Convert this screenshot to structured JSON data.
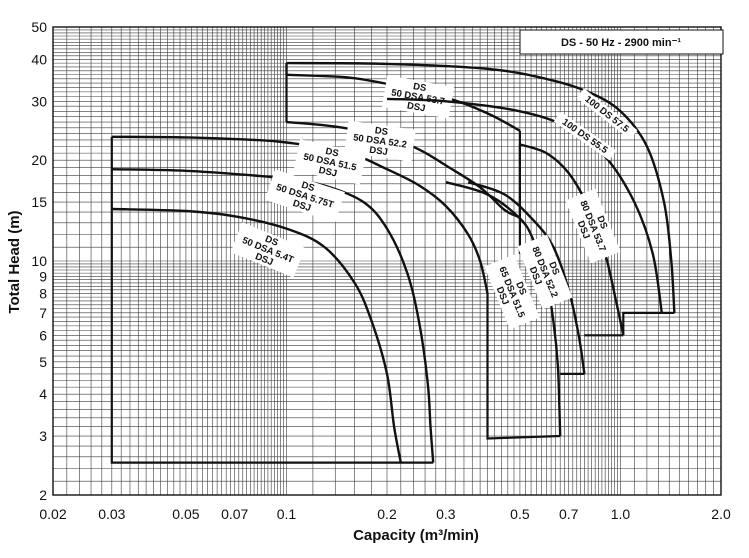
{
  "chart_data": {
    "type": "line",
    "title": "",
    "legend_text": "DS - 50 Hz - 2900 min⁻¹",
    "legend_position": "top-right",
    "xlabel": "Capacity (m³/min)",
    "ylabel": "Total Head (m)",
    "xscale": "log",
    "yscale": "log",
    "xlim": [
      0.02,
      2.0
    ],
    "ylim": [
      2,
      50
    ],
    "grid": true,
    "x_tick_labels": [
      "0.02",
      "0.03",
      "0.05",
      "0.07",
      "0.1",
      "0.2",
      "0.3",
      "0.5",
      "0.7",
      "1.0",
      "2.0"
    ],
    "x_tick_values": [
      0.02,
      0.03,
      0.05,
      0.07,
      0.1,
      0.2,
      0.3,
      0.5,
      0.7,
      1.0,
      2.0
    ],
    "y_tick_labels": [
      "2",
      "3",
      "4",
      "5",
      "6",
      "7",
      "8",
      "9",
      "10",
      "15",
      "20",
      "30",
      "40",
      "50"
    ],
    "y_tick_values": [
      2,
      3,
      4,
      5,
      6,
      7,
      8,
      9,
      10,
      15,
      20,
      30,
      40,
      50
    ],
    "series": [
      {
        "name": "50 DS 5.4T",
        "label_lines": [
          "DS",
          "50 DSA 5.4T",
          "DSJ"
        ],
        "points": [
          [
            0.03,
            14.3
          ],
          [
            0.05,
            14.1
          ],
          [
            0.07,
            13.6
          ],
          [
            0.1,
            12.5
          ],
          [
            0.13,
            11.0
          ],
          [
            0.16,
            8.6
          ],
          [
            0.18,
            6.6
          ],
          [
            0.2,
            4.6
          ],
          [
            0.21,
            3.2
          ],
          [
            0.22,
            2.5
          ]
        ]
      },
      {
        "name": "50 DS 5.75T",
        "label_lines": [
          "DS",
          "50 DSA 5.75T",
          "DSJ"
        ],
        "points": [
          [
            0.03,
            18.8
          ],
          [
            0.05,
            18.6
          ],
          [
            0.08,
            18.0
          ],
          [
            0.1,
            17.6
          ],
          [
            0.13,
            16.8
          ],
          [
            0.17,
            15.0
          ],
          [
            0.2,
            12.5
          ],
          [
            0.23,
            9.2
          ],
          [
            0.25,
            6.5
          ],
          [
            0.265,
            4.3
          ],
          [
            0.27,
            3.2
          ],
          [
            0.275,
            2.5
          ]
        ]
      },
      {
        "name": "50 DS 51.5",
        "label_lines": [
          "DS",
          "50 DSA 51.5",
          "DSJ"
        ],
        "points": [
          [
            0.03,
            23.5
          ],
          [
            0.05,
            23.4
          ],
          [
            0.08,
            23.0
          ],
          [
            0.1,
            22.6
          ],
          [
            0.15,
            21.2
          ],
          [
            0.2,
            18.8
          ],
          [
            0.25,
            16.8
          ],
          [
            0.3,
            14.6
          ],
          [
            0.35,
            12.0
          ],
          [
            0.38,
            10.0
          ],
          [
            0.4,
            8.0
          ]
        ]
      },
      {
        "name": "50 DS 52.2",
        "label_lines": [
          "DS",
          "50 DSA 52.2",
          "DSJ"
        ],
        "points": [
          [
            0.1,
            26.0
          ],
          [
            0.14,
            25.2
          ],
          [
            0.2,
            23.5
          ],
          [
            0.25,
            21.5
          ],
          [
            0.3,
            19.3
          ],
          [
            0.38,
            16.6
          ],
          [
            0.45,
            14.2
          ],
          [
            0.5,
            13.5
          ]
        ]
      },
      {
        "name": "50 DS 53.7",
        "label_lines": [
          "DS",
          "50 DSA 53.7",
          "DSJ"
        ],
        "points": [
          [
            0.1,
            36.0
          ],
          [
            0.15,
            35.4
          ],
          [
            0.2,
            33.8
          ],
          [
            0.3,
            30.8
          ],
          [
            0.4,
            27.6
          ],
          [
            0.5,
            24.5
          ]
        ]
      },
      {
        "name": "65 DS 51.5",
        "label_lines": [
          "DS",
          "65 DSA 51.5",
          "DSJ"
        ],
        "points": [
          [
            0.3,
            17.2
          ],
          [
            0.4,
            15.8
          ],
          [
            0.5,
            13.4
          ],
          [
            0.55,
            11.5
          ],
          [
            0.6,
            8.8
          ],
          [
            0.63,
            6.6
          ],
          [
            0.65,
            4.8
          ],
          [
            0.66,
            3.0
          ]
        ]
      },
      {
        "name": "80 DS 52.2",
        "label_lines": [
          "DS",
          "80 DSA 52.2",
          "DSJ"
        ],
        "points": [
          [
            0.35,
            17.2
          ],
          [
            0.45,
            15.8
          ],
          [
            0.55,
            13.2
          ],
          [
            0.63,
            11.0
          ],
          [
            0.7,
            8.2
          ],
          [
            0.75,
            6.0
          ],
          [
            0.78,
            4.6
          ]
        ]
      },
      {
        "name": "80 DS 53.7",
        "label_lines": [
          "DS",
          "80 DSA 53.7",
          "DSJ"
        ],
        "points": [
          [
            0.5,
            22.3
          ],
          [
            0.6,
            21.0
          ],
          [
            0.7,
            18.3
          ],
          [
            0.8,
            14.5
          ],
          [
            0.9,
            10.5
          ],
          [
            0.97,
            7.6
          ],
          [
            1.02,
            6.0
          ]
        ]
      },
      {
        "name": "100 DS 55.5",
        "label_lines": [
          "100 DS 55.5"
        ],
        "points": [
          [
            0.2,
            30.5
          ],
          [
            0.3,
            30.0
          ],
          [
            0.5,
            28.0
          ],
          [
            0.7,
            25.0
          ],
          [
            0.9,
            20.5
          ],
          [
            1.1,
            15.0
          ],
          [
            1.25,
            10.5
          ],
          [
            1.33,
            7.0
          ]
        ]
      },
      {
        "name": "100 DS 57.5",
        "label_lines": [
          "100 DS 57.5"
        ],
        "points": [
          [
            0.1,
            39.0
          ],
          [
            0.2,
            38.8
          ],
          [
            0.4,
            37.5
          ],
          [
            0.6,
            35.0
          ],
          [
            0.8,
            32.0
          ],
          [
            1.0,
            28.0
          ],
          [
            1.2,
            22.0
          ],
          [
            1.35,
            15.0
          ],
          [
            1.42,
            10.0
          ],
          [
            1.45,
            7.0
          ]
        ]
      }
    ]
  }
}
